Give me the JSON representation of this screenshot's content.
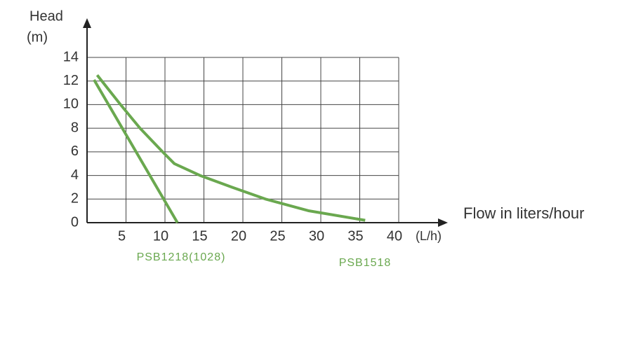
{
  "chart_data": {
    "type": "line",
    "y_label": "Head",
    "y_unit": "(m)",
    "x_label": "Flow in liters/hour",
    "x_unit": "(L/h)",
    "xlim": [
      0,
      40
    ],
    "xticks": [
      5,
      10,
      15,
      20,
      25,
      30,
      35,
      40
    ],
    "ylim": [
      0,
      14
    ],
    "yticks": [
      0,
      2,
      4,
      6,
      8,
      10,
      12,
      14
    ],
    "grid": true,
    "series": [
      {
        "name": "PSB1218(1028)",
        "color": "#6aa84f",
        "x": [
          0.9,
          11.6
        ],
        "values": [
          12.1,
          0
        ]
      },
      {
        "name": "PSB1518",
        "color": "#6aa84f",
        "x": [
          1.3,
          4.3,
          6.8,
          9.7,
          11.2,
          14.5,
          18.6,
          22.9,
          28.5,
          35.7
        ],
        "values": [
          12.5,
          10,
          8,
          6,
          5,
          4,
          3,
          2,
          1,
          0.2
        ]
      }
    ]
  }
}
